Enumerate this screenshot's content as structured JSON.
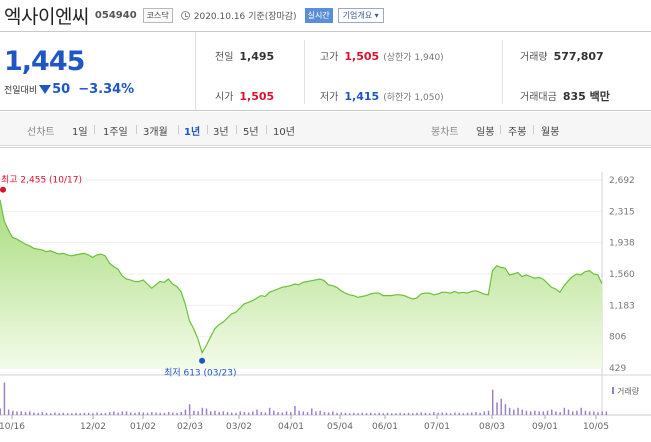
{
  "stock": {
    "name": "엑사이엔씨",
    "code": "054940",
    "market": "코스닥",
    "date_text": "2020.10.16 기준(장마감)",
    "realtime_label": "실시간",
    "company_info_label": "기업개요 ▾"
  },
  "price": {
    "current": "1,445",
    "change_label": "전일대비",
    "change_value": "50",
    "change_rate": "−3.34%"
  },
  "quote": {
    "prev_close": {
      "label": "전일",
      "value": "1,495"
    },
    "open": {
      "label": "시가",
      "value": "1,505"
    },
    "high": {
      "label": "고가",
      "value": "1,505",
      "sub": "(상한가 1,940)"
    },
    "low": {
      "label": "저가",
      "value": "1,415",
      "sub": "(하한가 1,050)"
    },
    "volume": {
      "label": "거래량",
      "value": "577,807"
    },
    "trade_value": {
      "label": "거래대금",
      "value": "835 백만"
    }
  },
  "periods": {
    "line_label": "선차트",
    "line_items": [
      "1일",
      "1주일",
      "3개월",
      "1년",
      "3년",
      "5년",
      "10년"
    ],
    "active": "1년",
    "candle_label": "봉차트",
    "candle_items": [
      "일봉",
      "주봉",
      "월봉"
    ]
  },
  "chart_data": {
    "type": "area",
    "y_ticks": [
      "2,692",
      "2,315",
      "1,938",
      "1,560",
      "1,183",
      "806",
      "429"
    ],
    "y_tick_values": [
      2692,
      2315,
      1938,
      1560,
      1183,
      806,
      429
    ],
    "x_labels": [
      "10/16",
      "12/02",
      "01/02",
      "02/03",
      "03/02",
      "04/01",
      "05/04",
      "06/01",
      "07/01",
      "08/03",
      "09/01",
      "10/05"
    ],
    "high_annotation": "최고 2,455 (10/17)",
    "low_annotation": "최저 613 (03/23)",
    "volume_legend": "거래량",
    "series": [
      {
        "values": [
          2455,
          2200,
          2090,
          2000,
          1980,
          1950,
          1920,
          1900,
          1870,
          1860,
          1850,
          1830,
          1840,
          1820,
          1800,
          1810,
          1790,
          1780,
          1790,
          1800,
          1810,
          1790,
          1760,
          1790,
          1800,
          1780,
          1690,
          1650,
          1620,
          1540,
          1500,
          1490,
          1470,
          1470,
          1490,
          1440,
          1390,
          1430,
          1470,
          1460,
          1500,
          1440,
          1410,
          1350,
          1200,
          1000,
          900,
          780,
          613,
          700,
          800,
          900,
          950,
          980,
          1030,
          1080,
          1100,
          1150,
          1200,
          1220,
          1240,
          1270,
          1300,
          1290,
          1340,
          1360,
          1380,
          1400,
          1410,
          1420,
          1440,
          1430,
          1460,
          1470,
          1480,
          1490,
          1500,
          1480,
          1430,
          1420,
          1400,
          1360,
          1330,
          1310,
          1300,
          1280,
          1290,
          1300,
          1320,
          1330,
          1330,
          1300,
          1300,
          1300,
          1310,
          1310,
          1300,
          1280,
          1260,
          1270,
          1320,
          1330,
          1330,
          1310,
          1320,
          1340,
          1340,
          1330,
          1350,
          1330,
          1340,
          1330,
          1350,
          1360,
          1340,
          1320,
          1310,
          1600,
          1660,
          1640,
          1630,
          1550,
          1560,
          1580,
          1530,
          1550,
          1530,
          1510,
          1520,
          1500,
          1450,
          1400,
          1380,
          1340,
          1420,
          1480,
          1530,
          1560,
          1550,
          1590,
          1600,
          1560,
          1550,
          1445
        ]
      },
      {
        "name": "거래량",
        "values": [
          0.18,
          0.9,
          0.15,
          0.12,
          0.1,
          0.1,
          0.08,
          0.1,
          0.07,
          0.06,
          0.08,
          0.06,
          0.05,
          0.07,
          0.05,
          0.06,
          0.05,
          0.05,
          0.06,
          0.05,
          0.06,
          0.06,
          0.05,
          0.07,
          0.05,
          0.05,
          0.08,
          0.1,
          0.07,
          0.1,
          0.1,
          0.07,
          0.06,
          0.08,
          0.07,
          0.06,
          0.08,
          0.07,
          0.06,
          0.06,
          0.08,
          0.07,
          0.06,
          0.08,
          0.15,
          0.3,
          0.12,
          0.1,
          0.2,
          0.18,
          0.1,
          0.12,
          0.08,
          0.1,
          0.08,
          0.07,
          0.06,
          0.1,
          0.08,
          0.07,
          0.1,
          0.15,
          0.08,
          0.07,
          0.2,
          0.12,
          0.08,
          0.07,
          0.1,
          0.08,
          0.25,
          0.12,
          0.1,
          0.08,
          0.18,
          0.1,
          0.12,
          0.08,
          0.07,
          0.1,
          0.06,
          0.07,
          0.06,
          0.05,
          0.06,
          0.05,
          0.06,
          0.05,
          0.06,
          0.05,
          0.06,
          0.05,
          0.06,
          0.05,
          0.05,
          0.06,
          0.05,
          0.06,
          0.05,
          0.06,
          0.07,
          0.06,
          0.05,
          0.08,
          0.06,
          0.07,
          0.06,
          0.05,
          0.07,
          0.06,
          0.05,
          0.06,
          0.07,
          0.08,
          0.06,
          0.1,
          0.12,
          0.7,
          0.35,
          0.45,
          0.3,
          0.2,
          0.15,
          0.2,
          0.15,
          0.12,
          0.1,
          0.12,
          0.1,
          0.1,
          0.12,
          0.15,
          0.1,
          0.08,
          0.2,
          0.15,
          0.1,
          0.12,
          0.2,
          0.12,
          0.1,
          0.1,
          0.08,
          0.1,
          0.1
        ]
      }
    ]
  }
}
